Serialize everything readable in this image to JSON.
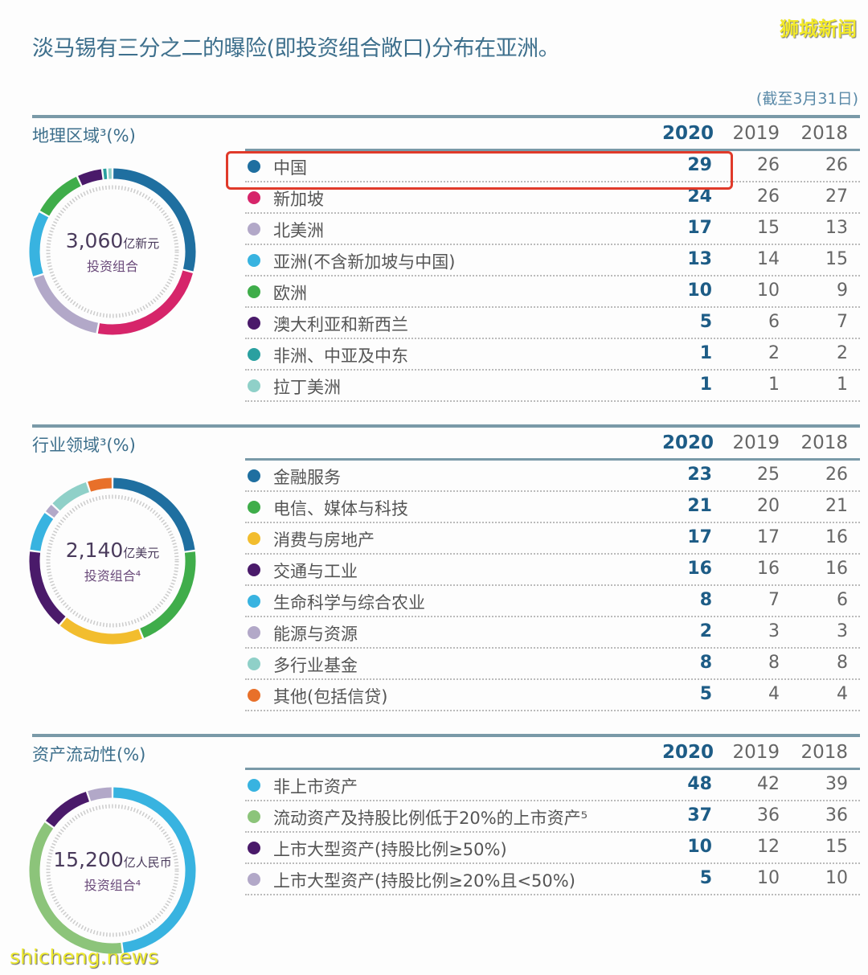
{
  "title": "淡马锡有三分之二的曝险(即投资组合敞口)分布在亚洲。",
  "watermark_top": "狮城新闻",
  "watermark_bottom": "shicheng.news",
  "as_of": "(截至3月31日)",
  "years": [
    "2020",
    "2019",
    "2018"
  ],
  "chart_data": [
    {
      "type": "pie",
      "title": "地理区域³(%)",
      "center_value": "3,060",
      "center_unit": "亿新元",
      "center_label": "投资组合",
      "categories": [
        "中国",
        "新加坡",
        "北美洲",
        "亚洲(不含新加坡与中国)",
        "欧洲",
        "澳大利亚和新西兰",
        "非洲、中亚及中东",
        "拉丁美洲"
      ],
      "colors": [
        "#1f6fa0",
        "#d6256a",
        "#b2a8c8",
        "#38b3e0",
        "#3fad4a",
        "#4a1a6a",
        "#2aa0a0",
        "#8fd0c8"
      ],
      "series": [
        {
          "name": "2020",
          "values": [
            29,
            24,
            17,
            13,
            10,
            5,
            1,
            1
          ]
        },
        {
          "name": "2019",
          "values": [
            26,
            26,
            15,
            14,
            10,
            6,
            2,
            1
          ]
        },
        {
          "name": "2018",
          "values": [
            26,
            27,
            13,
            15,
            9,
            7,
            2,
            1
          ]
        }
      ],
      "highlight": "中国"
    },
    {
      "type": "pie",
      "title": "行业领域³(%)",
      "center_value": "2,140",
      "center_unit": "亿美元",
      "center_label": "投资组合⁴",
      "categories": [
        "金融服务",
        "电信、媒体与科技",
        "消费与房地产",
        "交通与工业",
        "生命科学与综合农业",
        "能源与资源",
        "多行业基金",
        "其他(包括信贷)"
      ],
      "colors": [
        "#1f6fa0",
        "#3fad4a",
        "#f2bd2e",
        "#4a1a6a",
        "#38b3e0",
        "#b2a8c8",
        "#8fd0c8",
        "#e8702a"
      ],
      "series": [
        {
          "name": "2020",
          "values": [
            23,
            21,
            17,
            16,
            8,
            2,
            8,
            5
          ]
        },
        {
          "name": "2019",
          "values": [
            25,
            20,
            17,
            16,
            7,
            3,
            8,
            4
          ]
        },
        {
          "name": "2018",
          "values": [
            26,
            21,
            16,
            16,
            6,
            3,
            8,
            4
          ]
        }
      ]
    },
    {
      "type": "pie",
      "title": "资产流动性(%)",
      "center_value": "15,200",
      "center_unit": "亿人民币",
      "center_label": "投资组合⁴",
      "categories": [
        "非上市资产",
        "流动资产及持股比例低于20%的上市资产⁵",
        "上市大型资产(持股比例≥50%)",
        "上市大型资产(持股比例≥20%且<50%)"
      ],
      "colors": [
        "#38b3e0",
        "#8cc47a",
        "#4a1a6a",
        "#b2a8c8"
      ],
      "series": [
        {
          "name": "2020",
          "values": [
            48,
            37,
            10,
            5
          ]
        },
        {
          "name": "2019",
          "values": [
            42,
            36,
            12,
            10
          ]
        },
        {
          "name": "2018",
          "values": [
            39,
            36,
            15,
            10
          ]
        }
      ]
    }
  ]
}
